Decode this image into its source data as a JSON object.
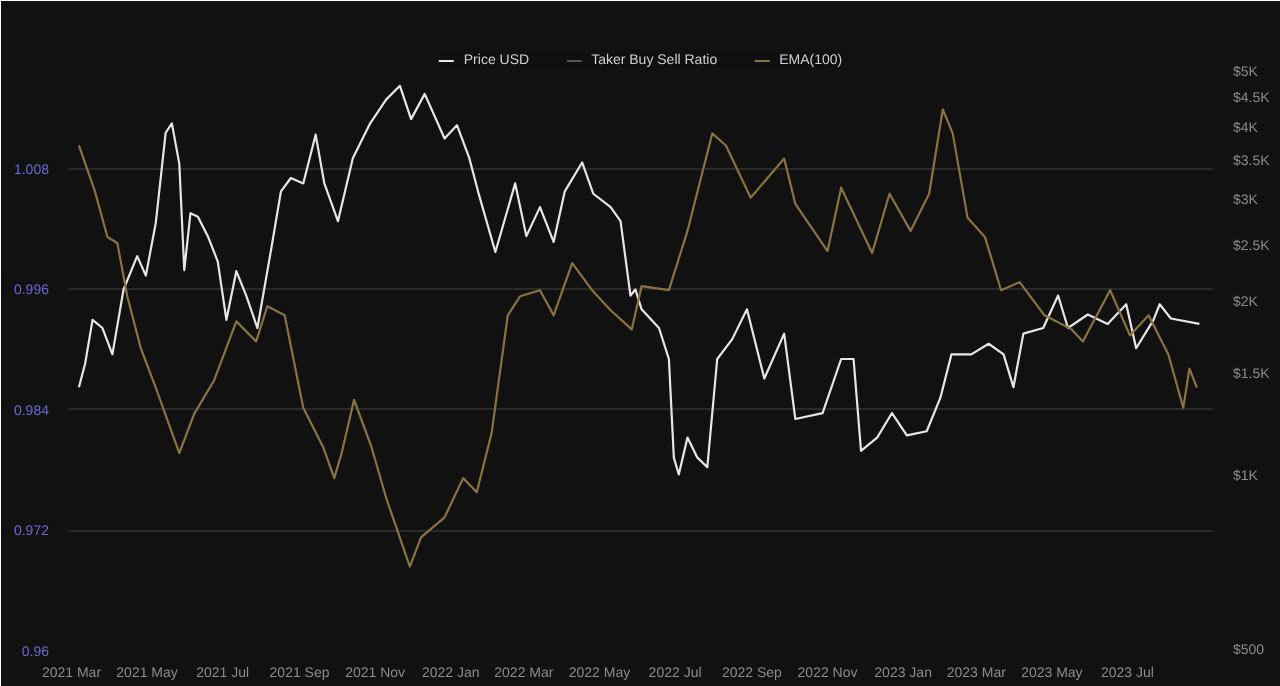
{
  "chart_data": {
    "type": "line",
    "legend": "top",
    "grid": "y",
    "line_style": "solid",
    "marker": "none",
    "xlim": [
      "2021-02-27",
      "2023-09-08"
    ],
    "xticks": [
      {
        "value": "2021-03-01",
        "label": "2021 Mar"
      },
      {
        "value": "2021-05-01",
        "label": "2021 May"
      },
      {
        "value": "2021-07-01",
        "label": "2021 Jul"
      },
      {
        "value": "2021-09-01",
        "label": "2021 Sep"
      },
      {
        "value": "2021-11-01",
        "label": "2021 Nov"
      },
      {
        "value": "2022-01-01",
        "label": "2022 Jan"
      },
      {
        "value": "2022-03-01",
        "label": "2022 Mar"
      },
      {
        "value": "2022-05-01",
        "label": "2022 May"
      },
      {
        "value": "2022-07-01",
        "label": "2022 Jul"
      },
      {
        "value": "2022-09-01",
        "label": "2022 Sep"
      },
      {
        "value": "2022-11-01",
        "label": "2022 Nov"
      },
      {
        "value": "2023-01-01",
        "label": "2023 Jan"
      },
      {
        "value": "2023-03-01",
        "label": "2023 Mar"
      },
      {
        "value": "2023-05-01",
        "label": "2023 May"
      },
      {
        "value": "2023-07-01",
        "label": "2023 Jul"
      }
    ],
    "ylim": [
      0.96,
      1.0199
    ],
    "yticks": [
      0.96,
      0.972,
      0.984,
      0.996,
      1.008
    ],
    "log": "y2",
    "y2lim": [
      500,
      5500
    ],
    "y2ticks": [
      {
        "value": 500,
        "label": "$500"
      },
      {
        "value": 1000,
        "label": "$1K"
      },
      {
        "value": 1500,
        "label": "$1.5K"
      },
      {
        "value": 2000,
        "label": "$2K"
      },
      {
        "value": 2500,
        "label": "$2.5K"
      },
      {
        "value": 3000,
        "label": "$3K"
      },
      {
        "value": 3500,
        "label": "$3.5K"
      },
      {
        "value": 4000,
        "label": "$4K"
      },
      {
        "value": 4500,
        "label": "$4.5K"
      },
      {
        "value": 5000,
        "label": "$5K"
      }
    ],
    "series": [
      {
        "name": "Price USD",
        "color": "#e6e6e6",
        "axis": "y2",
        "x": [
          "2021-03-07",
          "2021-03-12",
          "2021-03-18",
          "2021-03-26",
          "2021-04-03",
          "2021-04-12",
          "2021-04-23",
          "2021-04-30",
          "2021-05-08",
          "2021-05-16",
          "2021-05-21",
          "2021-05-27",
          "2021-05-31",
          "2021-06-05",
          "2021-06-11",
          "2021-06-19",
          "2021-06-27",
          "2021-07-04",
          "2021-07-12",
          "2021-07-20",
          "2021-07-29",
          "2021-08-09",
          "2021-08-17",
          "2021-08-25",
          "2021-09-04",
          "2021-09-14",
          "2021-09-21",
          "2021-10-02",
          "2021-10-14",
          "2021-10-28",
          "2021-11-10",
          "2021-11-21",
          "2021-11-30",
          "2021-12-11",
          "2021-12-27",
          "2022-01-06",
          "2022-01-16",
          "2022-01-23",
          "2022-02-06",
          "2022-02-22",
          "2022-03-03",
          "2022-03-14",
          "2022-03-25",
          "2022-04-03",
          "2022-04-17",
          "2022-04-26",
          "2022-05-10",
          "2022-05-18",
          "2022-05-26",
          "2022-05-30",
          "2022-06-04",
          "2022-06-18",
          "2022-06-26",
          "2022-06-30",
          "2022-07-04",
          "2022-07-11",
          "2022-07-19",
          "2022-07-27",
          "2022-08-04",
          "2022-08-16",
          "2022-08-28",
          "2022-09-11",
          "2022-09-27",
          "2022-10-06",
          "2022-10-28",
          "2022-11-12",
          "2022-11-22",
          "2022-11-28",
          "2022-12-11",
          "2022-12-23",
          "2023-01-04",
          "2023-01-20",
          "2023-01-31",
          "2023-02-09",
          "2023-02-25",
          "2023-03-11",
          "2023-03-23",
          "2023-03-31",
          "2023-04-08",
          "2023-04-24",
          "2023-05-06",
          "2023-05-14",
          "2023-05-30",
          "2023-06-15",
          "2023-06-30",
          "2023-07-08",
          "2023-07-22",
          "2023-07-27",
          "2023-08-05",
          "2023-08-28"
        ],
        "values": [
          1430,
          1570,
          1870,
          1810,
          1630,
          2110,
          2410,
          2230,
          2750,
          3940,
          4090,
          3480,
          2280,
          2860,
          2820,
          2610,
          2360,
          1870,
          2270,
          2060,
          1810,
          2470,
          3120,
          3290,
          3220,
          3910,
          3220,
          2770,
          3560,
          4090,
          4500,
          4750,
          4160,
          4600,
          3850,
          4060,
          3560,
          3120,
          2450,
          3220,
          2610,
          2930,
          2550,
          3120,
          3500,
          3090,
          2930,
          2770,
          2060,
          2110,
          1950,
          1810,
          1600,
          1080,
          1010,
          1170,
          1080,
          1040,
          1600,
          1730,
          1950,
          1480,
          1770,
          1260,
          1290,
          1600,
          1600,
          1110,
          1170,
          1290,
          1180,
          1200,
          1370,
          1630,
          1630,
          1700,
          1630,
          1430,
          1770,
          1810,
          2060,
          1810,
          1910,
          1840,
          1990,
          1670,
          1870,
          1990,
          1880,
          1840
        ]
      },
      {
        "name": "Taker Buy Sell Ratio",
        "color": "#555555",
        "values": [
          null
        ]
      },
      {
        "name": "EMA(100)",
        "color": "#8a7342",
        "x": [
          "2021-03-07",
          "2021-03-20",
          "2021-03-30",
          "2021-04-07",
          "2021-04-15",
          "2021-04-26",
          "2021-05-08",
          "2021-05-27",
          "2021-06-08",
          "2021-06-24",
          "2021-07-12",
          "2021-07-28",
          "2021-08-06",
          "2021-08-20",
          "2021-09-04",
          "2021-09-20",
          "2021-09-29",
          "2021-10-05",
          "2021-10-15",
          "2021-10-29",
          "2021-11-10",
          "2021-11-29",
          "2021-12-08",
          "2021-12-27",
          "2022-01-11",
          "2022-01-22",
          "2022-02-03",
          "2022-02-16",
          "2022-02-26",
          "2022-03-14",
          "2022-03-25",
          "2022-04-09",
          "2022-04-25",
          "2022-05-10",
          "2022-05-27",
          "2022-06-04",
          "2022-06-26",
          "2022-07-11",
          "2022-07-31",
          "2022-08-11",
          "2022-08-31",
          "2022-09-27",
          "2022-10-06",
          "2022-11-01",
          "2022-11-12",
          "2022-12-07",
          "2022-12-21",
          "2023-01-07",
          "2023-01-22",
          "2023-02-02",
          "2023-02-10",
          "2023-02-22",
          "2023-03-08",
          "2023-03-21",
          "2023-04-05",
          "2023-04-25",
          "2023-05-17",
          "2023-05-26",
          "2023-06-17",
          "2023-07-03",
          "2023-07-18",
          "2023-08-03",
          "2023-08-15",
          "2023-08-20",
          "2023-08-26"
        ],
        "values": [
          1.0103,
          1.0057,
          1.0012,
          1.0006,
          0.9953,
          0.9901,
          0.9862,
          0.9797,
          0.9836,
          0.9869,
          0.9928,
          0.9908,
          0.9943,
          0.9934,
          0.9842,
          0.9803,
          0.9772,
          0.9797,
          0.985,
          0.9803,
          0.9752,
          0.9684,
          0.9713,
          0.9733,
          0.9772,
          0.9758,
          0.9817,
          0.9934,
          0.9953,
          0.9959,
          0.9934,
          0.9986,
          0.9959,
          0.9939,
          0.992,
          0.9963,
          0.9959,
          1.0018,
          1.0115,
          1.0103,
          1.0051,
          1.009,
          1.0045,
          0.9998,
          1.0061,
          0.9996,
          1.0055,
          1.0018,
          1.0055,
          1.0139,
          1.0115,
          1.0031,
          1.0012,
          0.9959,
          0.9967,
          0.9934,
          0.992,
          0.9908,
          0.9959,
          0.9914,
          0.9934,
          0.9895,
          0.9842,
          0.9881,
          0.9862
        ]
      }
    ]
  }
}
